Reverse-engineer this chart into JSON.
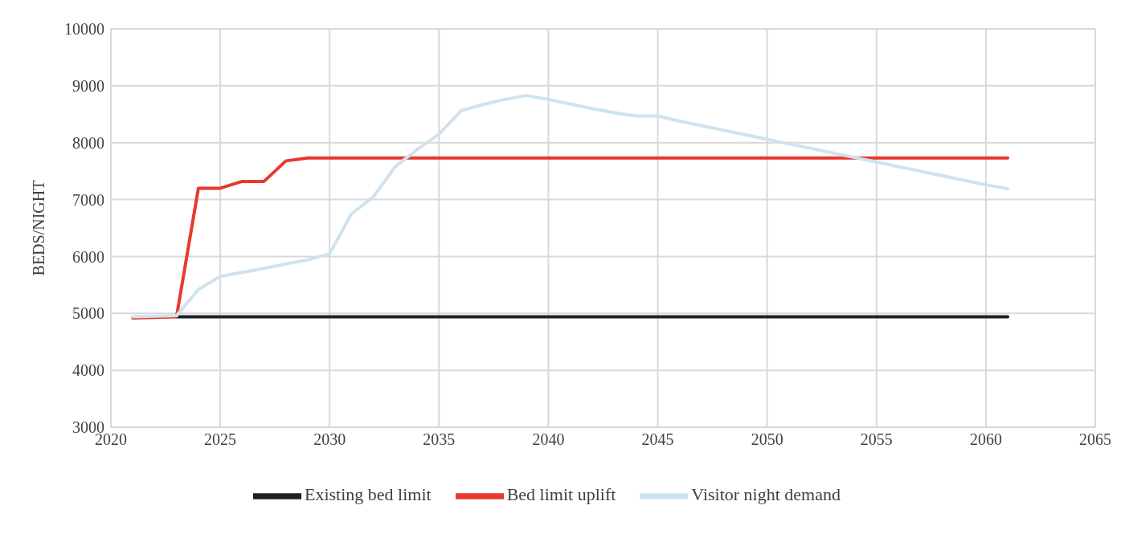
{
  "chart_data": {
    "type": "line",
    "ylabel": "BEDS/NIGHT",
    "xlim": [
      2020,
      2065
    ],
    "xticks": [
      2020,
      2025,
      2030,
      2035,
      2040,
      2045,
      2050,
      2055,
      2060,
      2065
    ],
    "ylim": [
      3000,
      10000
    ],
    "yticks": [
      3000,
      4000,
      5000,
      6000,
      7000,
      8000,
      9000,
      10000
    ],
    "grid": true,
    "legend": "bottom",
    "marker": "none",
    "line_style": "solid",
    "series": [
      {
        "name": "Existing bed limit",
        "color": "#1a2228",
        "x": [
          2023,
          2061
        ],
        "values": [
          4940,
          4940
        ]
      },
      {
        "name": "Bed limit uplift",
        "color": "#e8392f",
        "x": [
          2021,
          2023,
          2024,
          2025,
          2026,
          2027,
          2028,
          2029,
          2061
        ],
        "values": [
          4920,
          4940,
          7200,
          7200,
          7320,
          7320,
          7680,
          7730,
          7730
        ]
      },
      {
        "name": "Visitor night demand",
        "color": "#cfe3ee",
        "x": [
          2021,
          2023,
          2024,
          2025,
          2026,
          2027,
          2028,
          2029,
          2030,
          2031,
          2032,
          2033,
          2034,
          2035,
          2036,
          2037,
          2038,
          2039,
          2040,
          2041,
          2042,
          2043,
          2044,
          2045,
          2046,
          2047,
          2048,
          2049,
          2050,
          2051,
          2052,
          2053,
          2054,
          2055,
          2056,
          2057,
          2058,
          2059,
          2060,
          2061
        ],
        "values": [
          4940,
          4960,
          5420,
          5650,
          5720,
          5790,
          5870,
          5940,
          6050,
          6750,
          7050,
          7580,
          7880,
          8150,
          8560,
          8670,
          8760,
          8830,
          8760,
          8680,
          8600,
          8530,
          8470,
          8470,
          8380,
          8300,
          8220,
          8140,
          8060,
          7980,
          7900,
          7820,
          7740,
          7660,
          7580,
          7500,
          7420,
          7340,
          7260,
          7190
        ]
      }
    ]
  }
}
